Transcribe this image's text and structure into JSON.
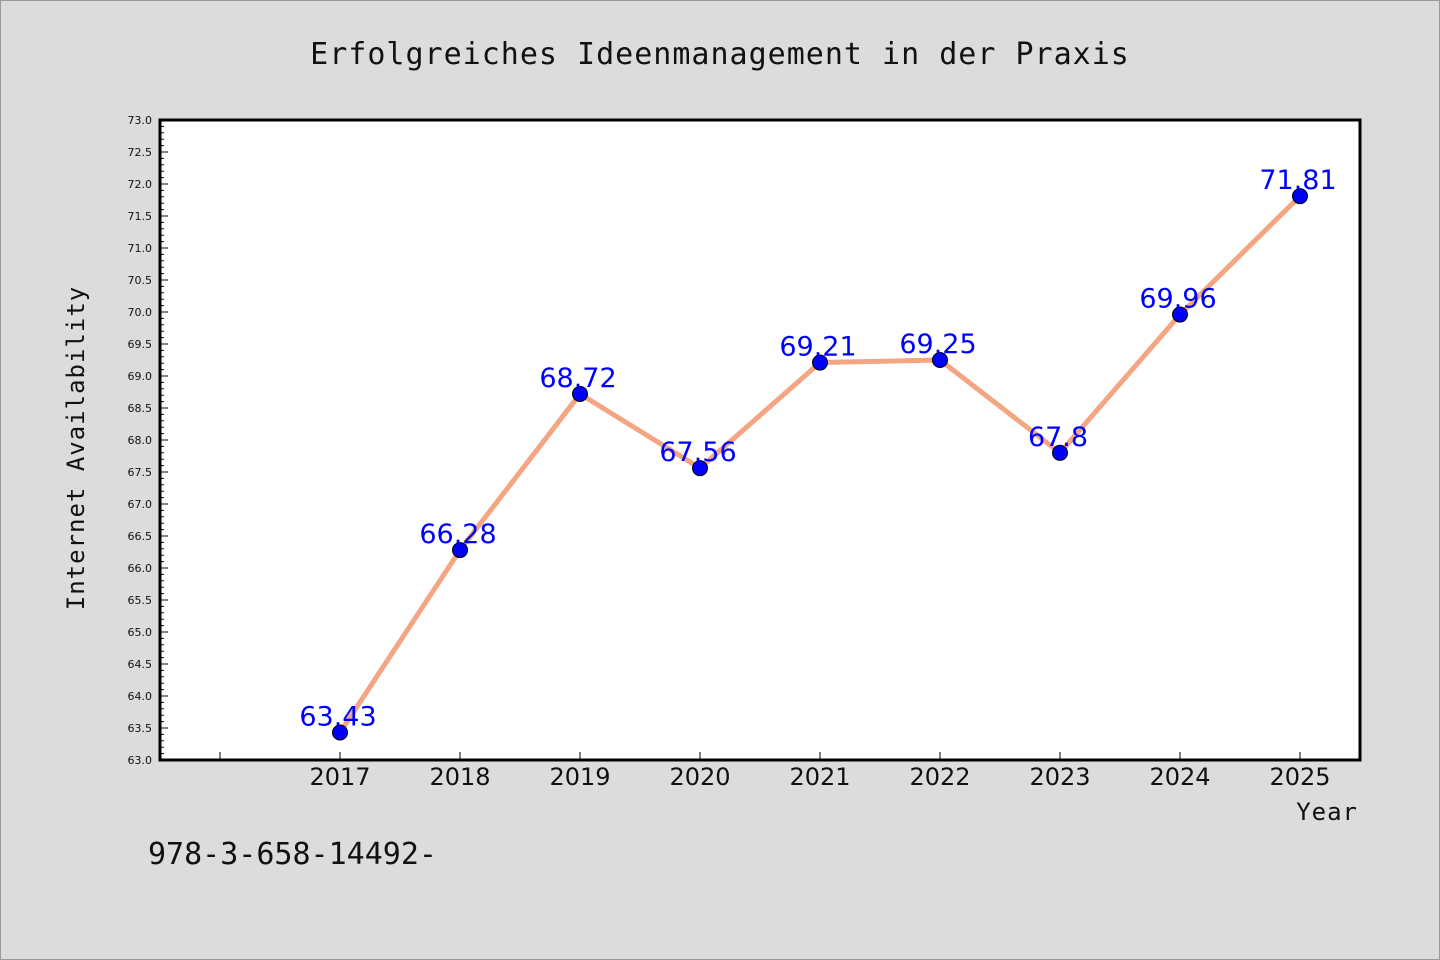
{
  "chart_data": {
    "type": "line",
    "title": "Erfolgreiches Ideenmanagement in der Praxis",
    "xlabel": "Year",
    "ylabel": "Internet Availability",
    "categories": [
      "2017",
      "2018",
      "2019",
      "2020",
      "2021",
      "2022",
      "2023",
      "2024",
      "2025"
    ],
    "series": [
      {
        "values": [
          63.43,
          66.28,
          68.72,
          67.56,
          69.21,
          69.25,
          67.8,
          69.96,
          71.81
        ],
        "data_labels": [
          "63.43",
          "66.28",
          "68.72",
          "67.56",
          "69.21",
          "69.25",
          "67.8",
          "69.96",
          "71.81"
        ]
      }
    ],
    "ylim": [
      63.0,
      73.0
    ],
    "yticks": [
      "63.0",
      "63.5",
      "64.0",
      "64.5",
      "65.0",
      "65.5",
      "66.0",
      "66.5",
      "67.0",
      "67.5",
      "68.0",
      "68.5",
      "69.0",
      "69.5",
      "70.0",
      "70.5",
      "71.0",
      "71.5",
      "72.0",
      "72.5",
      "73.0"
    ],
    "grid": false,
    "colors": {
      "line": "#f4a582",
      "marker": "#0000ff",
      "labels": "#0000ff",
      "background": "#dcdcdc",
      "plot_area": "#ffffff"
    }
  },
  "footer_text": "978-3-658-14492-"
}
